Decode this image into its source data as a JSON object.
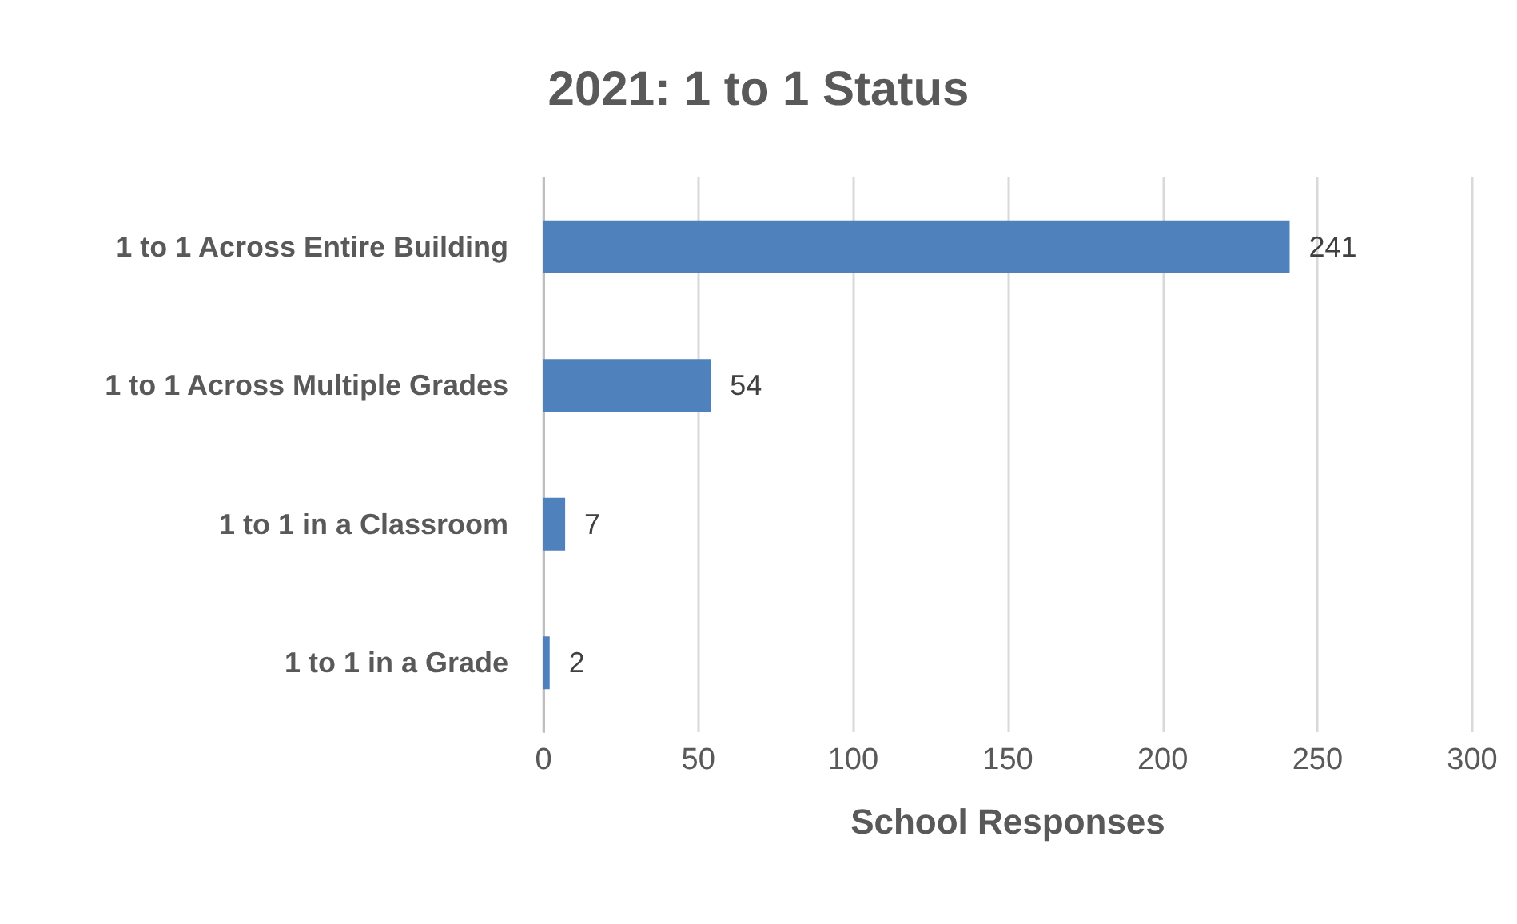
{
  "chart_data": {
    "type": "bar",
    "orientation": "horizontal",
    "title": "2021: 1 to 1 Status",
    "xlabel": "School Responses",
    "categories": [
      "1 to 1 Across Entire Building",
      "1 to 1 Across Multiple Grades",
      "1 to 1 in a Classroom",
      "1 to 1 in a Grade"
    ],
    "values": [
      241,
      54,
      7,
      2
    ],
    "color": "#4f81bd",
    "xlim": [
      0,
      300
    ],
    "xticks": [
      0,
      50,
      100,
      150,
      200,
      250,
      300
    ],
    "grid": "x",
    "data_labels": true
  }
}
